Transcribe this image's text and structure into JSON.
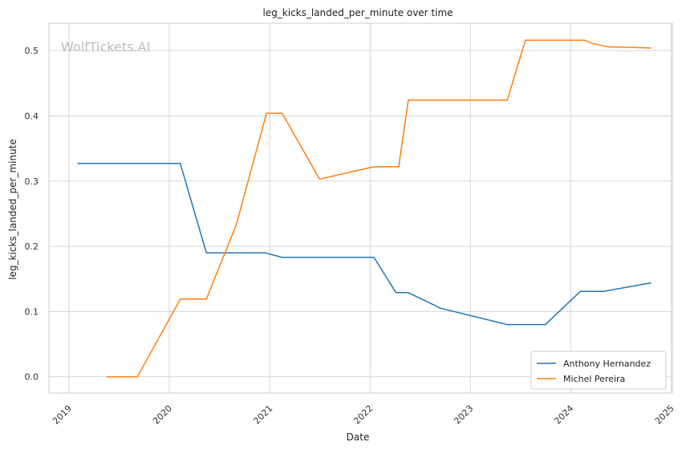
{
  "chart_data": {
    "type": "line",
    "title": "leg_kicks_landed_per_minute over time",
    "xlabel": "Date",
    "ylabel": "leg_kicks_landed_per_minute",
    "watermark": "WolfTickets.AI",
    "grid": true,
    "legend_position": "lower-right",
    "xlim": [
      "2018-10-20",
      "2025-01-05"
    ],
    "ylim": [
      -0.025,
      0.542
    ],
    "x_ticks": [
      {
        "date": "2019-01-01",
        "label": "2019"
      },
      {
        "date": "2020-01-01",
        "label": "2020"
      },
      {
        "date": "2021-01-01",
        "label": "2021"
      },
      {
        "date": "2022-01-01",
        "label": "2022"
      },
      {
        "date": "2023-01-01",
        "label": "2023"
      },
      {
        "date": "2024-01-01",
        "label": "2024"
      },
      {
        "date": "2025-01-01",
        "label": "2025"
      }
    ],
    "y_ticks": [
      {
        "value": 0.0,
        "label": "0.0"
      },
      {
        "value": 0.1,
        "label": "0.1"
      },
      {
        "value": 0.2,
        "label": "0.2"
      },
      {
        "value": 0.3,
        "label": "0.3"
      },
      {
        "value": 0.4,
        "label": "0.4"
      },
      {
        "value": 0.5,
        "label": "0.5"
      }
    ],
    "series": [
      {
        "name": "Anthony Hernandez",
        "color": "#1f77b4",
        "points": [
          {
            "x": "2019-02-01",
            "y": 0.327
          },
          {
            "x": "2020-02-10",
            "y": 0.327
          },
          {
            "x": "2020-05-15",
            "y": 0.19
          },
          {
            "x": "2020-12-15",
            "y": 0.19
          },
          {
            "x": "2021-02-15",
            "y": 0.183
          },
          {
            "x": "2022-01-15",
            "y": 0.183
          },
          {
            "x": "2022-04-05",
            "y": 0.129
          },
          {
            "x": "2022-05-20",
            "y": 0.129
          },
          {
            "x": "2022-09-15",
            "y": 0.105
          },
          {
            "x": "2023-05-15",
            "y": 0.08
          },
          {
            "x": "2023-10-01",
            "y": 0.08
          },
          {
            "x": "2024-02-05",
            "y": 0.131
          },
          {
            "x": "2024-05-01",
            "y": 0.131
          },
          {
            "x": "2024-10-20",
            "y": 0.144
          }
        ]
      },
      {
        "name": "Michel Pereira",
        "color": "#ff7f0e",
        "points": [
          {
            "x": "2019-05-18",
            "y": 0.0
          },
          {
            "x": "2019-09-07",
            "y": 0.0
          },
          {
            "x": "2020-02-10",
            "y": 0.119
          },
          {
            "x": "2020-05-15",
            "y": 0.119
          },
          {
            "x": "2020-09-01",
            "y": 0.233
          },
          {
            "x": "2020-12-20",
            "y": 0.404
          },
          {
            "x": "2021-02-15",
            "y": 0.404
          },
          {
            "x": "2021-07-01",
            "y": 0.303
          },
          {
            "x": "2022-01-15",
            "y": 0.322
          },
          {
            "x": "2022-04-15",
            "y": 0.322
          },
          {
            "x": "2022-05-20",
            "y": 0.424
          },
          {
            "x": "2023-05-15",
            "y": 0.424
          },
          {
            "x": "2023-07-20",
            "y": 0.516
          },
          {
            "x": "2024-02-20",
            "y": 0.516
          },
          {
            "x": "2024-03-20",
            "y": 0.511
          },
          {
            "x": "2024-05-15",
            "y": 0.506
          },
          {
            "x": "2024-10-20",
            "y": 0.504
          }
        ]
      }
    ]
  }
}
